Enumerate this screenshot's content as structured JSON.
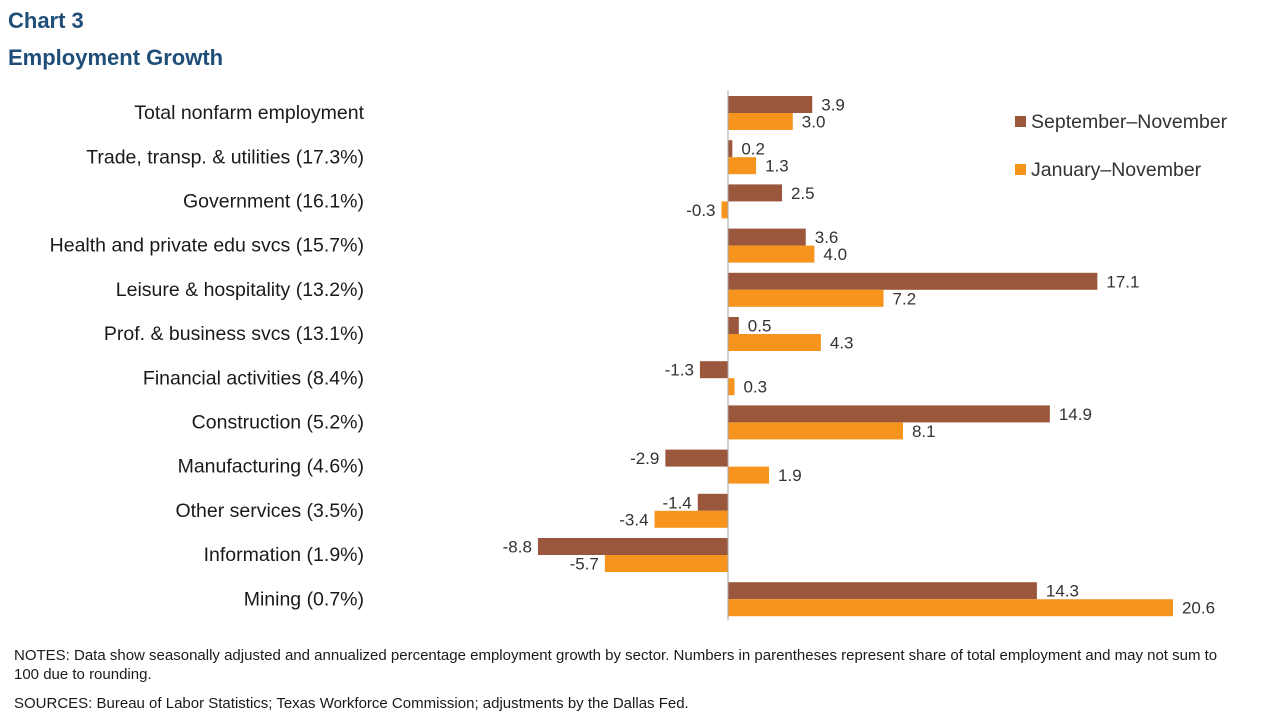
{
  "header": {
    "label": "Chart 3",
    "title": "Employment  Growth"
  },
  "footer": {
    "notes": "NOTES: Data show seasonally adjusted and annualized percentage employment growth by sector. Numbers in parentheses represent share of total employment and may not sum to 100 due to rounding.",
    "sources": "SOURCES: Bureau of Labor Statistics; Texas Workforce Commission; adjustments by the Dallas Fed."
  },
  "chart_data": {
    "type": "bar",
    "orientation": "horizontal",
    "categories": [
      "Total nonfarm employment",
      "Trade, transp. & utilities (17.3%)",
      "Government (16.1%)",
      "Health and private edu svcs (15.7%)",
      "Leisure & hospitality (13.2%)",
      "Prof. & business svcs (13.1%)",
      "Financial activities (8.4%)",
      "Construction (5.2%)",
      "Manufacturing (4.6%)",
      "Other services (3.5%)",
      "Information (1.9%)",
      "Mining (0.7%)"
    ],
    "series": [
      {
        "name": "September–November",
        "color": "#9b573b",
        "values": [
          3.9,
          0.2,
          2.5,
          3.6,
          17.1,
          0.5,
          -1.3,
          14.9,
          -2.9,
          -1.4,
          -8.8,
          14.3
        ]
      },
      {
        "name": "January–November",
        "color": "#f7941d",
        "values": [
          3.0,
          1.3,
          -0.3,
          4.0,
          7.2,
          4.3,
          0.3,
          8.1,
          1.9,
          -3.4,
          -5.7,
          20.6
        ]
      }
    ],
    "data_labels": true,
    "axis_labels_visible": false,
    "grid": false,
    "legend_position": "top-right"
  }
}
